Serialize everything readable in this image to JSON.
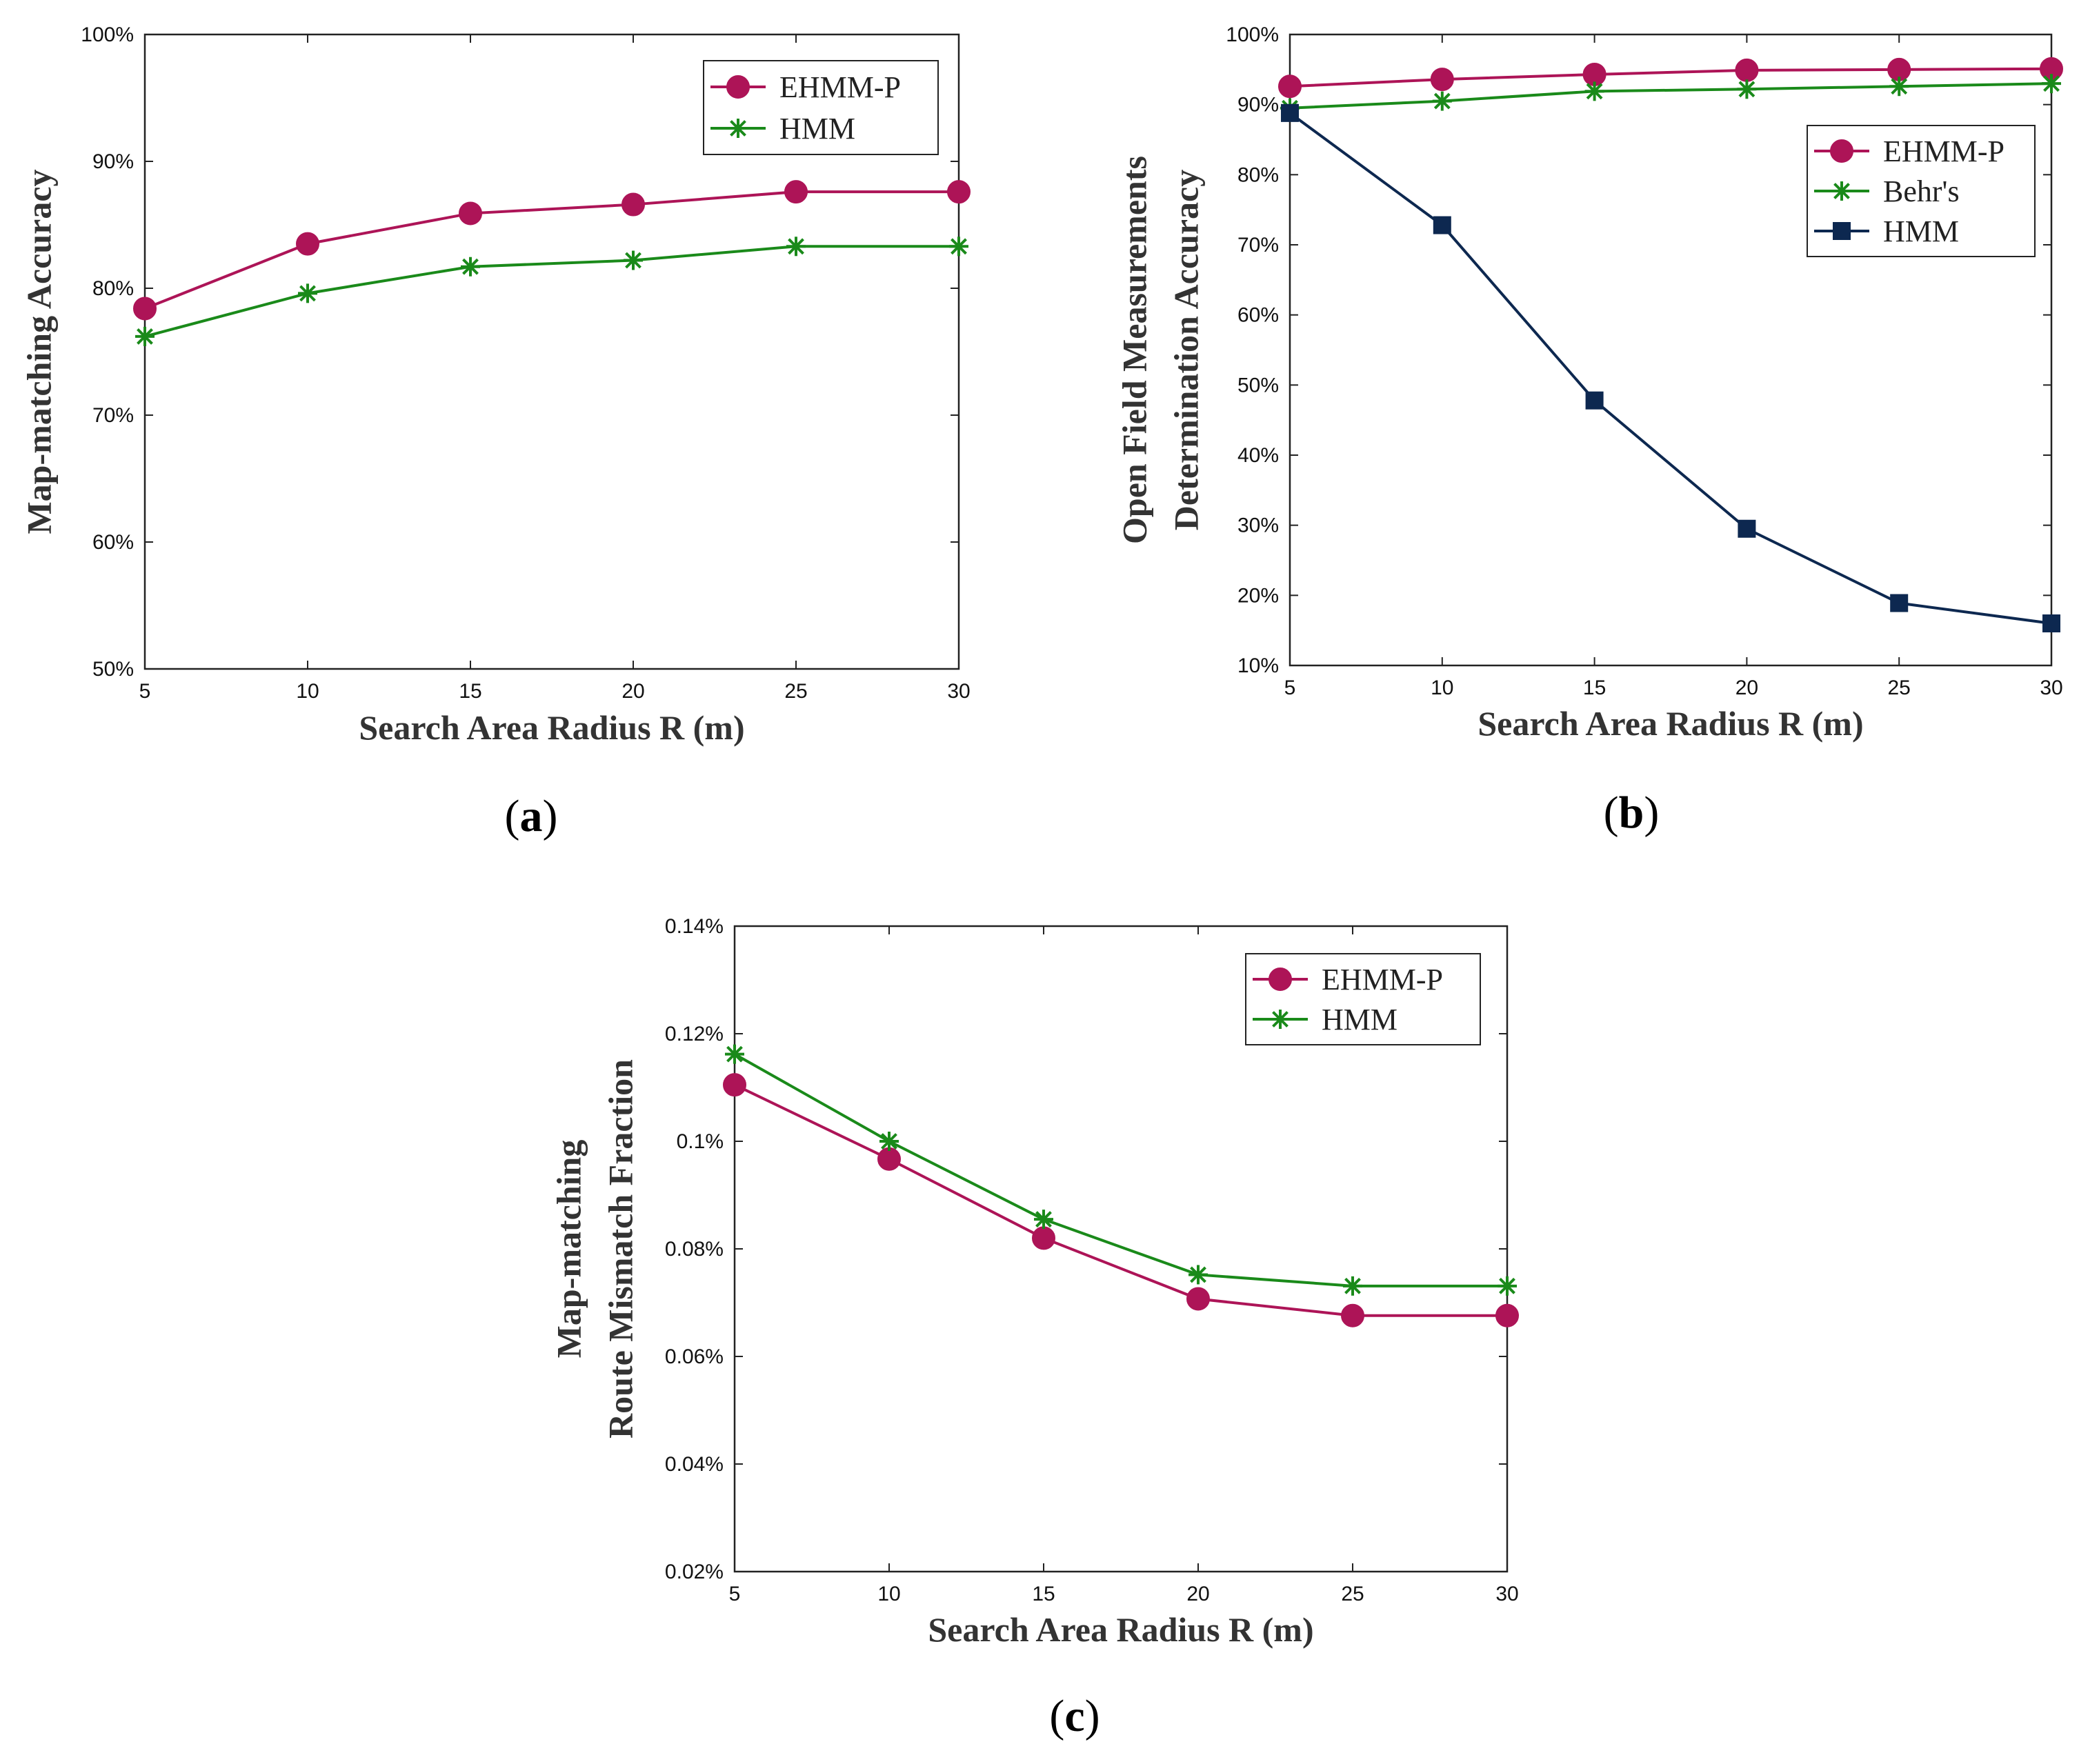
{
  "colors": {
    "EHMM-P": "#ad1457",
    "HMM_green": "#1a8a1a",
    "Behr's": "#1a8a1a",
    "HMM_navy": "#0d2850"
  },
  "chart_data": [
    {
      "id": "a",
      "panel_label": "a",
      "type": "line",
      "xlabel": "Search Area Radius R (m)",
      "ylabel_lines": [
        "Map-matching Accuracy"
      ],
      "x": [
        5,
        10,
        15,
        20,
        25,
        30
      ],
      "xlim": [
        5,
        30
      ],
      "ylim": [
        50,
        100
      ],
      "y_unit": "%",
      "xticks": [
        "5",
        "10",
        "15",
        "20",
        "25",
        "30"
      ],
      "yticks": [
        "50%",
        "60%",
        "70%",
        "80%",
        "90%",
        "100%"
      ],
      "grid": false,
      "legend_position": "top-right",
      "series": [
        {
          "name": "EHMM-P",
          "marker": "circle",
          "color_key": "EHMM-P",
          "values": [
            78.4,
            83.5,
            85.9,
            86.6,
            87.6,
            87.6
          ]
        },
        {
          "name": "HMM",
          "marker": "asterisk",
          "color_key": "HMM_green",
          "values": [
            76.2,
            79.6,
            81.7,
            82.2,
            83.3,
            83.3
          ]
        }
      ]
    },
    {
      "id": "b",
      "panel_label": "b",
      "type": "line",
      "xlabel": "Search Area Radius R (m)",
      "ylabel_lines": [
        "Open Field Measurements",
        "Determination Accuracy"
      ],
      "x": [
        5,
        10,
        15,
        20,
        25,
        30
      ],
      "xlim": [
        5,
        30
      ],
      "ylim": [
        10,
        100
      ],
      "y_unit": "%",
      "xticks": [
        "5",
        "10",
        "15",
        "20",
        "25",
        "30"
      ],
      "yticks": [
        "10%",
        "20%",
        "30%",
        "40%",
        "50%",
        "60%",
        "70%",
        "80%",
        "90%",
        "100%"
      ],
      "grid": false,
      "legend_position": "top-right",
      "series": [
        {
          "name": "EHMM-P",
          "marker": "circle",
          "color_key": "EHMM-P",
          "values": [
            92.6,
            93.6,
            94.3,
            94.9,
            95.0,
            95.1
          ]
        },
        {
          "name": "Behr's",
          "marker": "asterisk",
          "color_key": "Behr's",
          "values": [
            89.5,
            90.5,
            91.9,
            92.2,
            92.6,
            93.0
          ]
        },
        {
          "name": "HMM",
          "marker": "square",
          "color_key": "HMM_navy",
          "values": [
            88.8,
            72.8,
            47.8,
            29.5,
            18.9,
            16.0
          ]
        }
      ]
    },
    {
      "id": "c",
      "panel_label": "c",
      "type": "line",
      "xlabel": "Search Area Radius R (m)",
      "ylabel_lines": [
        "Map-matching",
        "Route Mismatch Fraction"
      ],
      "x": [
        5,
        10,
        15,
        20,
        25,
        30
      ],
      "xlim": [
        5,
        30
      ],
      "ylim": [
        0.02,
        0.14
      ],
      "y_unit": "%",
      "xticks": [
        "5",
        "10",
        "15",
        "20",
        "25",
        "30"
      ],
      "yticks": [
        "0.02%",
        "0.04%",
        "0.06%",
        "0.08%",
        "0.1%",
        "0.12%",
        "0.14%"
      ],
      "grid": false,
      "legend_position": "top-right",
      "series": [
        {
          "name": "EHMM-P",
          "marker": "circle",
          "color_key": "EHMM-P",
          "values": [
            0.1105,
            0.0967,
            0.082,
            0.0707,
            0.0676,
            0.0676
          ]
        },
        {
          "name": "HMM",
          "marker": "asterisk",
          "color_key": "HMM_green",
          "values": [
            0.1162,
            0.1,
            0.0855,
            0.0752,
            0.0731,
            0.0731
          ]
        }
      ]
    }
  ]
}
